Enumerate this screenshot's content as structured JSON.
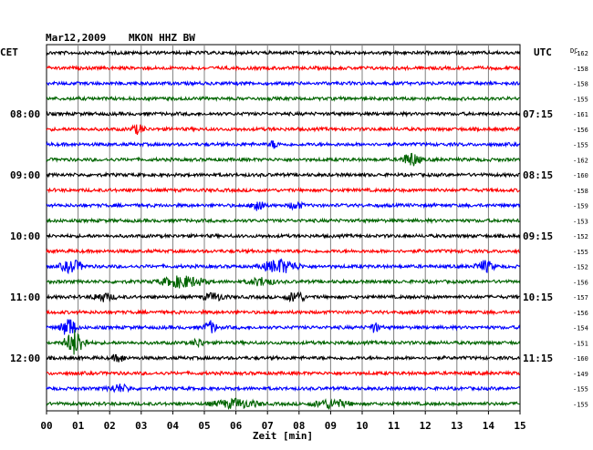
{
  "chart_data": {
    "type": "line",
    "title": "Mar12,2009",
    "station": "MKON HHZ BW",
    "left_label": "CET",
    "right_label": "UTC",
    "dc_label": "DC",
    "xlabel": "Zeit [min]",
    "xlim": [
      0,
      15
    ],
    "x_ticks": [
      "00",
      "01",
      "02",
      "03",
      "04",
      "05",
      "06",
      "07",
      "08",
      "09",
      "10",
      "11",
      "12",
      "13",
      "14",
      "15"
    ],
    "grid": true,
    "traces": [
      {
        "color": "black",
        "dc": -162,
        "cet": "",
        "utc": "",
        "events": []
      },
      {
        "color": "red",
        "dc": -158,
        "cet": "",
        "utc": "",
        "events": []
      },
      {
        "color": "blue",
        "dc": -158,
        "cet": "",
        "utc": "",
        "events": []
      },
      {
        "color": "green",
        "dc": -155,
        "cet": "",
        "utc": "",
        "events": []
      },
      {
        "color": "black",
        "dc": -161,
        "cet": "08:00",
        "utc": "07:15",
        "events": []
      },
      {
        "color": "red",
        "dc": -156,
        "cet": "",
        "utc": "",
        "events": [
          {
            "t": 2.9,
            "amp": 0.35,
            "dur": 0.3
          }
        ]
      },
      {
        "color": "blue",
        "dc": -155,
        "cet": "",
        "utc": "",
        "events": [
          {
            "t": 7.2,
            "amp": 0.3,
            "dur": 0.2
          }
        ]
      },
      {
        "color": "green",
        "dc": -162,
        "cet": "",
        "utc": "",
        "events": [
          {
            "t": 11.55,
            "amp": 0.55,
            "dur": 0.4
          }
        ]
      },
      {
        "color": "black",
        "dc": -160,
        "cet": "09:00",
        "utc": "08:15",
        "events": []
      },
      {
        "color": "red",
        "dc": -158,
        "cet": "",
        "utc": "",
        "events": []
      },
      {
        "color": "blue",
        "dc": -159,
        "cet": "",
        "utc": "",
        "events": [
          {
            "t": 6.7,
            "amp": 0.7,
            "dur": 0.25
          },
          {
            "t": 7.9,
            "amp": 0.3,
            "dur": 0.3
          }
        ]
      },
      {
        "color": "green",
        "dc": -153,
        "cet": "",
        "utc": "",
        "events": []
      },
      {
        "color": "black",
        "dc": -152,
        "cet": "10:00",
        "utc": "09:15",
        "events": []
      },
      {
        "color": "red",
        "dc": -155,
        "cet": "",
        "utc": "",
        "events": []
      },
      {
        "color": "blue",
        "dc": -152,
        "cet": "",
        "utc": "",
        "events": [
          {
            "t": 0.8,
            "amp": 0.5,
            "dur": 0.5
          },
          {
            "t": 7.4,
            "amp": 0.55,
            "dur": 0.8
          },
          {
            "t": 13.9,
            "amp": 0.45,
            "dur": 0.4
          }
        ]
      },
      {
        "color": "green",
        "dc": -156,
        "cet": "",
        "utc": "",
        "events": [
          {
            "t": 4.3,
            "amp": 0.45,
            "dur": 1.0
          },
          {
            "t": 6.8,
            "amp": 0.3,
            "dur": 0.6
          }
        ]
      },
      {
        "color": "black",
        "dc": -157,
        "cet": "11:00",
        "utc": "10:15",
        "events": [
          {
            "t": 1.8,
            "amp": 0.3,
            "dur": 0.5
          },
          {
            "t": 5.3,
            "amp": 0.3,
            "dur": 0.5
          },
          {
            "t": 7.9,
            "amp": 0.45,
            "dur": 0.4
          }
        ]
      },
      {
        "color": "red",
        "dc": -156,
        "cet": "",
        "utc": "",
        "events": []
      },
      {
        "color": "blue",
        "dc": -154,
        "cet": "",
        "utc": "",
        "events": [
          {
            "t": 0.7,
            "amp": 0.8,
            "dur": 0.35
          },
          {
            "t": 5.2,
            "amp": 0.45,
            "dur": 0.3
          },
          {
            "t": 10.4,
            "amp": 0.4,
            "dur": 0.2
          }
        ]
      },
      {
        "color": "green",
        "dc": -151,
        "cet": "",
        "utc": "",
        "events": [
          {
            "t": 0.9,
            "amp": 1.0,
            "dur": 0.45
          },
          {
            "t": 4.8,
            "amp": 0.3,
            "dur": 0.3
          }
        ]
      },
      {
        "color": "black",
        "dc": -160,
        "cet": "12:00",
        "utc": "11:15",
        "events": [
          {
            "t": 2.3,
            "amp": 0.3,
            "dur": 0.3
          }
        ]
      },
      {
        "color": "red",
        "dc": -149,
        "cet": "",
        "utc": "",
        "events": []
      },
      {
        "color": "blue",
        "dc": -155,
        "cet": "",
        "utc": "",
        "events": [
          {
            "t": 2.3,
            "amp": 0.3,
            "dur": 0.5
          }
        ]
      },
      {
        "color": "green",
        "dc": -155,
        "cet": "",
        "utc": "",
        "events": [
          {
            "t": 6.0,
            "amp": 0.35,
            "dur": 1.0
          },
          {
            "t": 9.0,
            "amp": 0.35,
            "dur": 0.8
          }
        ]
      }
    ],
    "colors": {
      "black": "#000000",
      "red": "#ff0000",
      "blue": "#0000ff",
      "green": "#006400",
      "grid": "#808080"
    }
  }
}
